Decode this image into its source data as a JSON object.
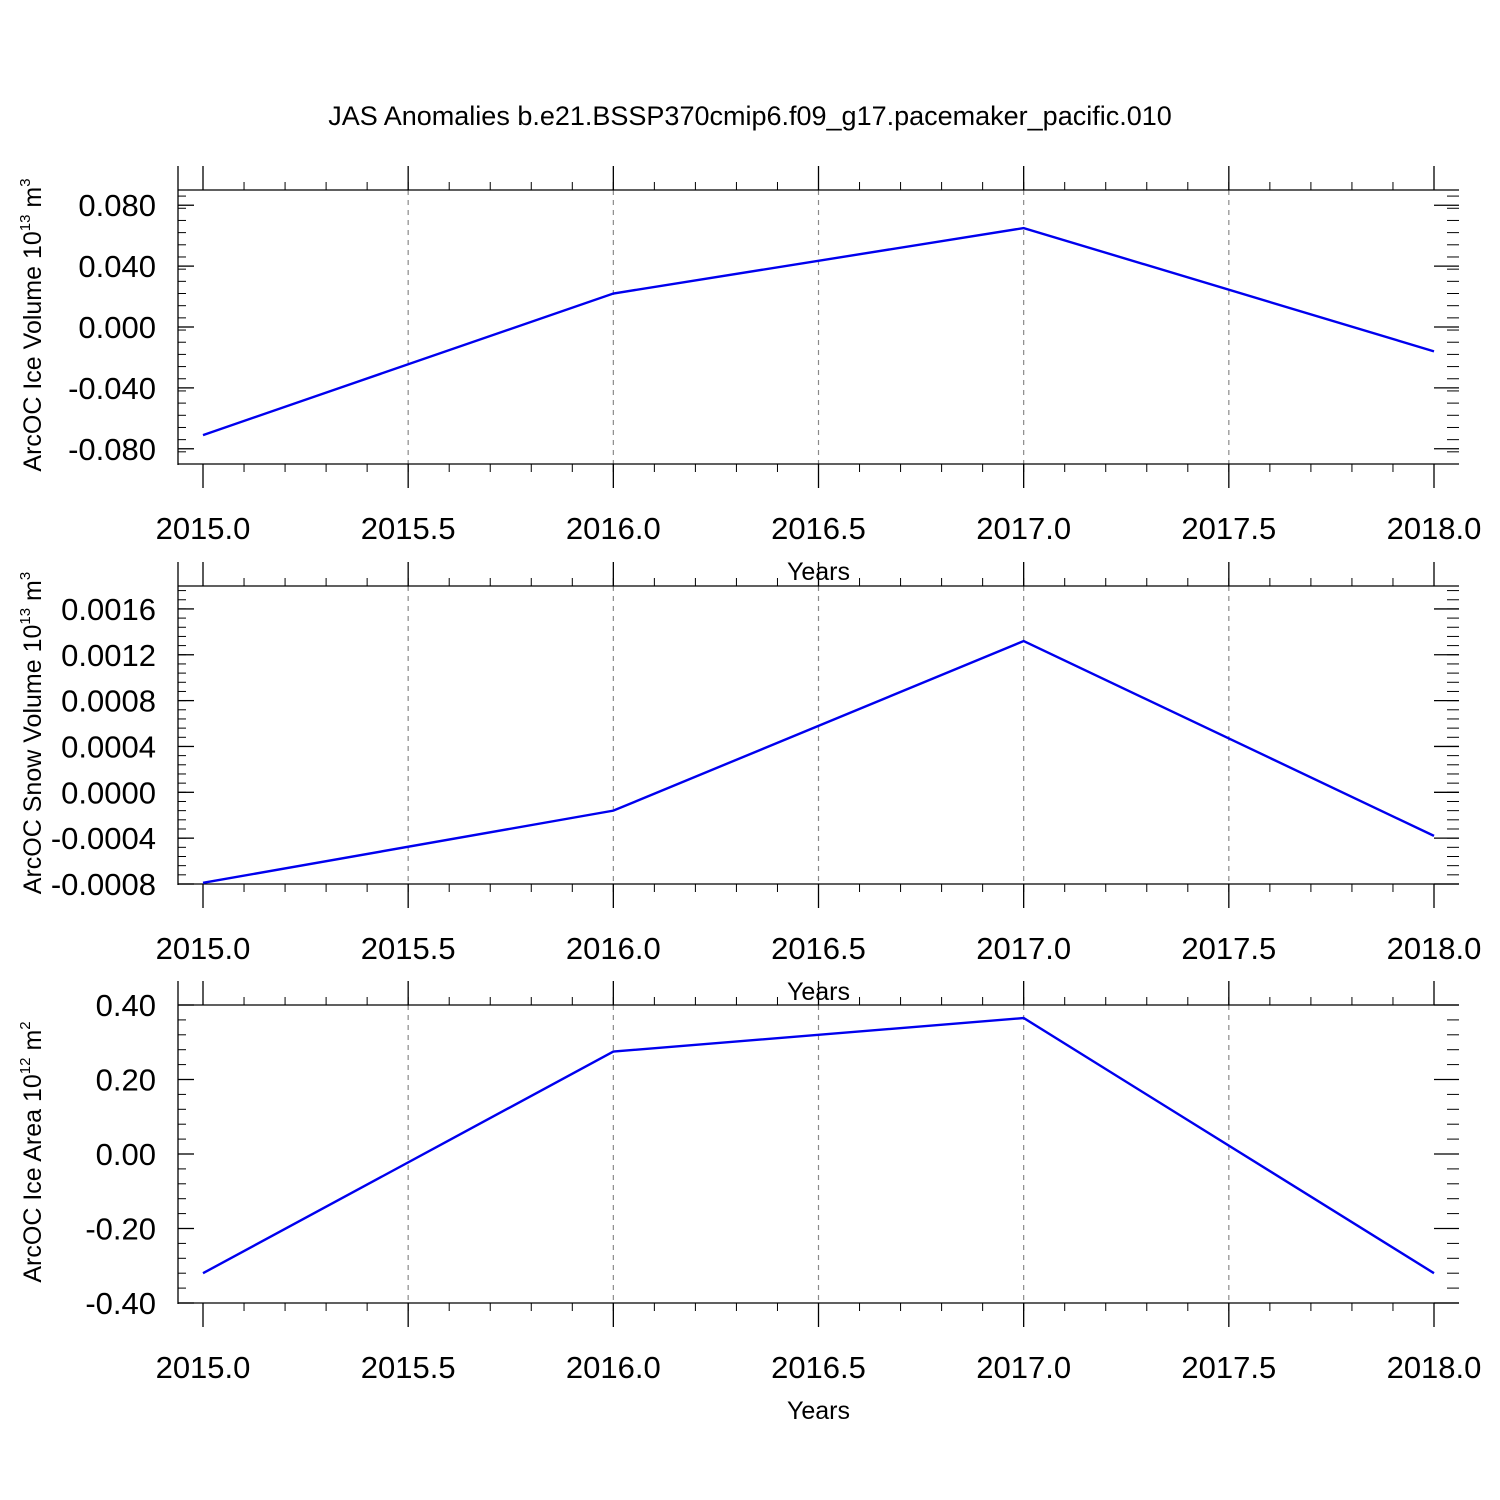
{
  "title": "JAS Anomalies b.e21.BSSP370cmip6.f09_g17.pacemaker_pacific.010",
  "chart_data": [
    {
      "type": "line",
      "xlabel": "Years",
      "ylabel": {
        "main": "ArcOC Ice Volume 10",
        "exp": "13",
        "unit": " m",
        "unit_exp": "3"
      },
      "xlim": [
        2015.0,
        2018.0
      ],
      "ylim": [
        -0.09,
        0.09
      ],
      "xticks": [
        "2015.0",
        "2015.5",
        "2016.0",
        "2016.5",
        "2017.0",
        "2017.5",
        "2018.0"
      ],
      "yticks": [
        {
          "value": 0.08,
          "label": "0.080"
        },
        {
          "value": 0.04,
          "label": "0.040"
        },
        {
          "value": 0.0,
          "label": "0.000"
        },
        {
          "value": -0.04,
          "label": "-0.040"
        },
        {
          "value": -0.08,
          "label": "-0.080"
        }
      ],
      "grid": "vertical-dashed",
      "series": [
        {
          "color": "#0000ee",
          "x": [
            2015,
            2016,
            2017,
            2018
          ],
          "y": [
            -0.071,
            0.022,
            0.065,
            -0.016
          ]
        }
      ]
    },
    {
      "type": "line",
      "xlabel": "Years",
      "ylabel": {
        "main": "ArcOC Snow Volume 10",
        "exp": "13",
        "unit": " m",
        "unit_exp": "3"
      },
      "xlim": [
        2015.0,
        2018.0
      ],
      "ylim": [
        -0.0008,
        0.0018
      ],
      "xticks": [
        "2015.0",
        "2015.5",
        "2016.0",
        "2016.5",
        "2017.0",
        "2017.5",
        "2018.0"
      ],
      "yticks": [
        {
          "value": 0.0016,
          "label": "0.0016"
        },
        {
          "value": 0.0012,
          "label": "0.0012"
        },
        {
          "value": 0.0008,
          "label": "0.0008"
        },
        {
          "value": 0.0004,
          "label": "0.0004"
        },
        {
          "value": 0.0,
          "label": "0.0000"
        },
        {
          "value": -0.0004,
          "label": "-0.0004"
        },
        {
          "value": -0.0008,
          "label": "-0.0008"
        }
      ],
      "grid": "vertical-dashed",
      "series": [
        {
          "color": "#0000ee",
          "x": [
            2015,
            2016,
            2017,
            2018
          ],
          "y": [
            -0.00079,
            -0.00016,
            0.00132,
            -0.00038
          ]
        }
      ]
    },
    {
      "type": "line",
      "xlabel": "Years",
      "ylabel": {
        "main": "ArcOC Ice Area 10",
        "exp": "12",
        "unit": " m",
        "unit_exp": "2"
      },
      "xlim": [
        2015.0,
        2018.0
      ],
      "ylim": [
        -0.4,
        0.4
      ],
      "xticks": [
        "2015.0",
        "2015.5",
        "2016.0",
        "2016.5",
        "2017.0",
        "2017.5",
        "2018.0"
      ],
      "yticks": [
        {
          "value": 0.4,
          "label": "0.40"
        },
        {
          "value": 0.2,
          "label": "0.20"
        },
        {
          "value": 0.0,
          "label": "0.00"
        },
        {
          "value": -0.2,
          "label": "-0.20"
        },
        {
          "value": -0.4,
          "label": "-0.40"
        }
      ],
      "grid": "vertical-dashed",
      "series": [
        {
          "color": "#0000ee",
          "x": [
            2015,
            2016,
            2017,
            2018
          ],
          "y": [
            -0.32,
            0.275,
            0.365,
            -0.32
          ]
        }
      ]
    }
  ]
}
